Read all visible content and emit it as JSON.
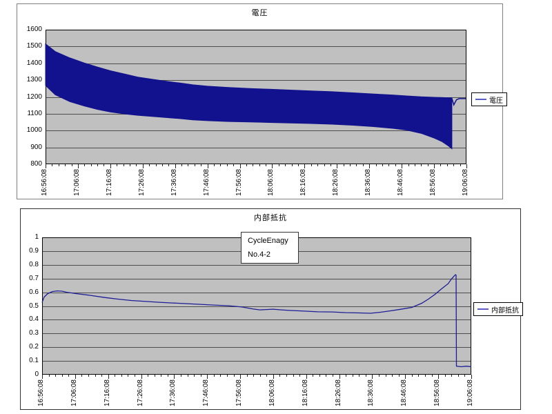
{
  "page": {
    "background": "#ffffff"
  },
  "chart_data": [
    {
      "type": "band",
      "title": "電圧",
      "legend": "電圧",
      "legend_position": "right",
      "color": "#12128e",
      "legend_color": "#5a5acc",
      "plot_bg": "#c0c0c0",
      "grid_color": "#4d4d4d",
      "xlim": [
        0,
        130
      ],
      "ylim": [
        800,
        1600
      ],
      "y_step": 100,
      "major_tick": 10,
      "minor_tick": 2,
      "x_unit": "minutes after 16:56:08",
      "grid": "horizontal-only",
      "y_ticklabels": [
        "1600",
        "1500",
        "1400",
        "1300",
        "1200",
        "1100",
        "1000",
        "900",
        "800"
      ],
      "x_ticklabels": [
        "16:56:08",
        "17:06:08",
        "17:16:08",
        "17:26:08",
        "17:36:08",
        "17:46:08",
        "17:56:08",
        "18:06:08",
        "18:16:08",
        "18:26:08",
        "18:36:08",
        "18:46:08",
        "18:56:08",
        "19:06:08"
      ],
      "series": [
        {
          "name": "電圧",
          "type": "band",
          "upper": [
            [
              0,
              1515
            ],
            [
              3,
              1470
            ],
            [
              7.5,
              1432
            ],
            [
              12,
              1402
            ],
            [
              16,
              1378
            ],
            [
              20,
              1356
            ],
            [
              24.5,
              1336
            ],
            [
              28.5,
              1318
            ],
            [
              33,
              1305
            ],
            [
              37,
              1294
            ],
            [
              41.5,
              1283
            ],
            [
              45.5,
              1272
            ],
            [
              50,
              1264
            ],
            [
              56.5,
              1256
            ],
            [
              63,
              1250
            ],
            [
              69,
              1246
            ],
            [
              75.5,
              1241
            ],
            [
              82,
              1236
            ],
            [
              88.5,
              1231
            ],
            [
              94.5,
              1225
            ],
            [
              101,
              1218
            ],
            [
              107.5,
              1211
            ],
            [
              111.5,
              1206
            ],
            [
              116,
              1201
            ],
            [
              120,
              1198
            ],
            [
              123.5,
              1196
            ],
            [
              125.5,
              1195
            ]
          ],
          "lower": [
            [
              0,
              1268
            ],
            [
              3,
              1213
            ],
            [
              7.5,
              1172
            ],
            [
              12,
              1146
            ],
            [
              16,
              1126
            ],
            [
              20,
              1111
            ],
            [
              24.5,
              1099
            ],
            [
              28.5,
              1091
            ],
            [
              33,
              1084
            ],
            [
              37,
              1078
            ],
            [
              41.5,
              1071
            ],
            [
              45.5,
              1064
            ],
            [
              50,
              1059
            ],
            [
              56.5,
              1054
            ],
            [
              63,
              1051
            ],
            [
              69,
              1048
            ],
            [
              75.5,
              1045
            ],
            [
              82,
              1042
            ],
            [
              88.5,
              1038
            ],
            [
              94.5,
              1032
            ],
            [
              101,
              1024
            ],
            [
              107.5,
              1013
            ],
            [
              111.5,
              1003
            ],
            [
              116,
              984
            ],
            [
              120,
              956
            ],
            [
              122.5,
              934
            ],
            [
              124.5,
              908
            ],
            [
              125.5,
              892
            ]
          ]
        },
        {
          "name": "電圧 end tail",
          "type": "line",
          "width": 1.5,
          "points": [
            [
              125.5,
              1192
            ],
            [
              126.1,
              1153
            ],
            [
              126.9,
              1183
            ],
            [
              127.8,
              1190
            ],
            [
              129.8,
              1190
            ]
          ]
        }
      ]
    },
    {
      "type": "line",
      "title": "内部抵抗",
      "legend": "内部抵抗",
      "legend_position": "right",
      "color": "#1c1c96",
      "legend_color": "#5a5acc",
      "plot_bg": "#c0c0c0",
      "grid_color": "#4d4d4d",
      "xlim": [
        0,
        130
      ],
      "ylim": [
        0,
        1
      ],
      "y_step": 0.1,
      "major_tick": 10,
      "minor_tick": 2,
      "x_unit": "minutes after 16:56:08",
      "grid": "horizontal-only",
      "y_ticklabels": [
        "1",
        "0.9",
        "0.8",
        "0.7",
        "0.6",
        "0.5",
        "0.4",
        "0.3",
        "0.2",
        "0.1",
        "0"
      ],
      "x_ticklabels": [
        "16:56:08",
        "17:06:08",
        "17:16:08",
        "17:26:08",
        "17:36:08",
        "17:46:08",
        "17:56:08",
        "18:06:08",
        "18:16:08",
        "18:26:08",
        "18:36:08",
        "18:46:08",
        "18:56:08",
        "19:06:08"
      ],
      "annotation": {
        "line1": "CycleEnagy",
        "line2": "No.4-2"
      },
      "series": [
        {
          "name": "内部抵抗",
          "type": "line",
          "width": 1.3,
          "points": [
            [
              0,
              0.525
            ],
            [
              0.6,
              0.565
            ],
            [
              1.7,
              0.59
            ],
            [
              3.1,
              0.605
            ],
            [
              4.5,
              0.61
            ],
            [
              6,
              0.608
            ],
            [
              7.5,
              0.6
            ],
            [
              10.5,
              0.59
            ],
            [
              14.5,
              0.578
            ],
            [
              19,
              0.562
            ],
            [
              23,
              0.55
            ],
            [
              27,
              0.54
            ],
            [
              31.5,
              0.533
            ],
            [
              35.5,
              0.527
            ],
            [
              39.5,
              0.522
            ],
            [
              44,
              0.517
            ],
            [
              48,
              0.512
            ],
            [
              52,
              0.507
            ],
            [
              56.5,
              0.502
            ],
            [
              60.5,
              0.493
            ],
            [
              64,
              0.478
            ],
            [
              66,
              0.472
            ],
            [
              70,
              0.477
            ],
            [
              72.5,
              0.472
            ],
            [
              75,
              0.468
            ],
            [
              79.5,
              0.463
            ],
            [
              83.5,
              0.458
            ],
            [
              88,
              0.457
            ],
            [
              92,
              0.452
            ],
            [
              96,
              0.45
            ],
            [
              99.5,
              0.447
            ],
            [
              102.5,
              0.455
            ],
            [
              105.5,
              0.465
            ],
            [
              108.5,
              0.476
            ],
            [
              112,
              0.49
            ],
            [
              115,
              0.52
            ],
            [
              117,
              0.55
            ],
            [
              119,
              0.585
            ],
            [
              121,
              0.625
            ],
            [
              123,
              0.663
            ],
            [
              124,
              0.697
            ],
            [
              125.2,
              0.728
            ],
            [
              125.4,
              0.725
            ],
            [
              125.5,
              0.062
            ],
            [
              127,
              0.058
            ],
            [
              128.5,
              0.062
            ],
            [
              130,
              0.058
            ]
          ]
        }
      ]
    }
  ]
}
